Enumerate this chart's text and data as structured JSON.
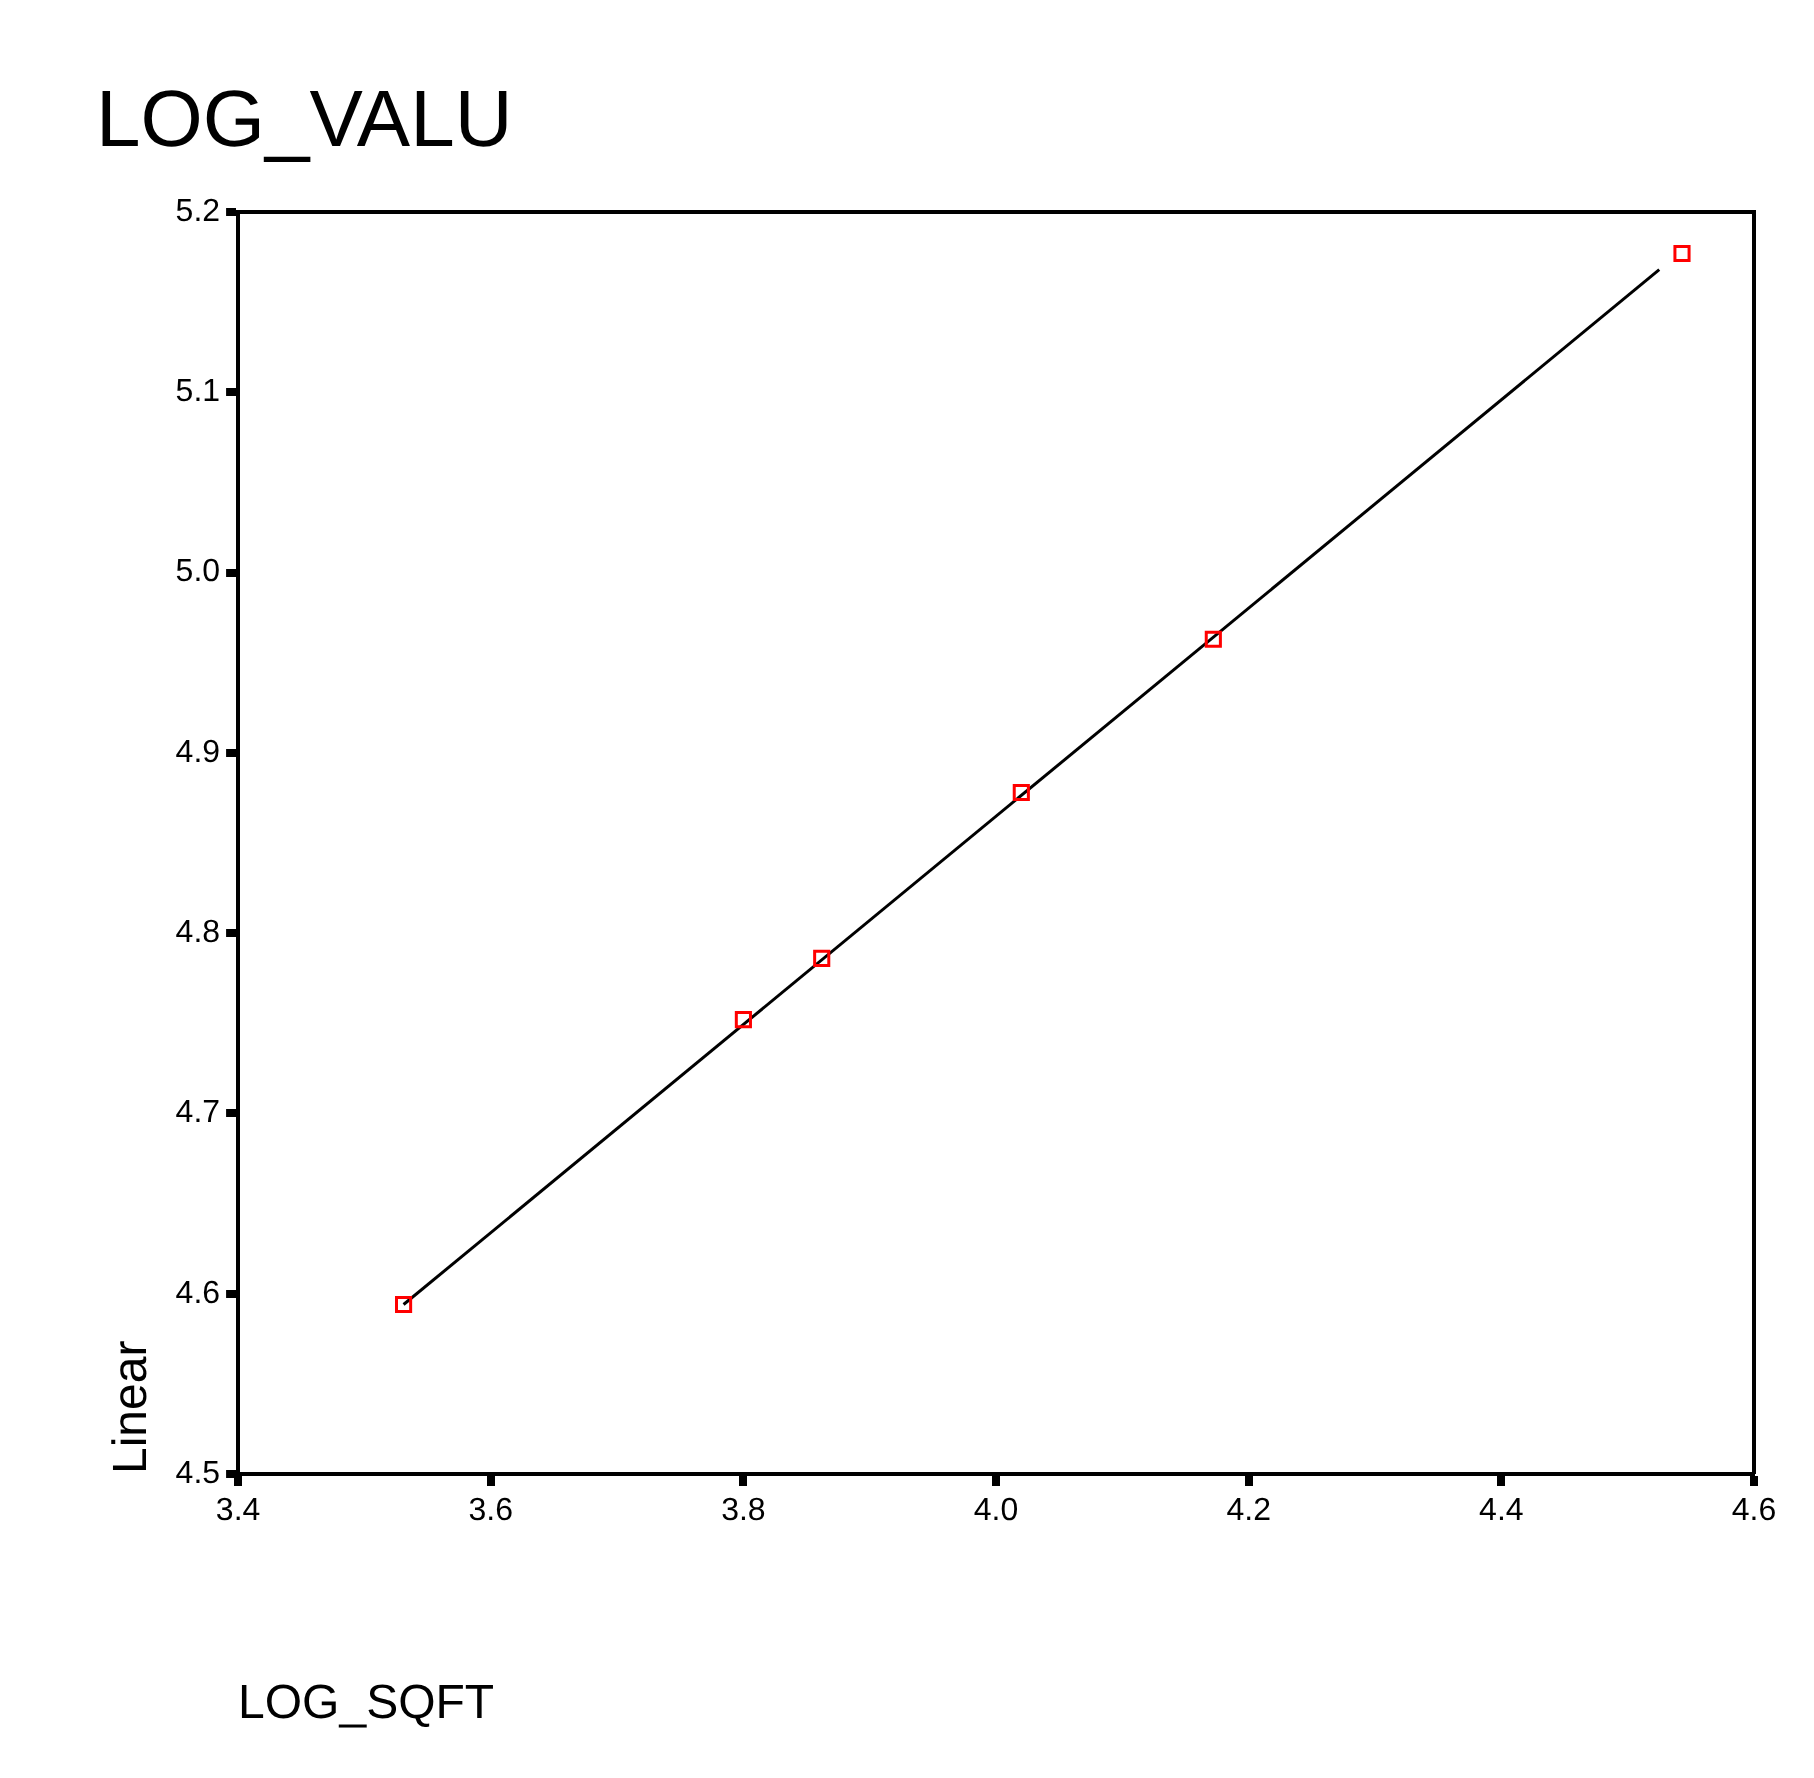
{
  "chart_data": {
    "type": "scatter",
    "title": "LOG_VALU",
    "xlabel": "LOG_SQFT",
    "ylabel": "Linear",
    "xlim": [
      3.4,
      4.6
    ],
    "xticks": [
      3.4,
      3.6,
      3.8,
      {
        "value": 4,
        "label": "4.0"
      },
      4.2,
      4.4,
      4.6
    ],
    "ylim": [
      4.5,
      5.2
    ],
    "yticks": [
      4.5,
      4.6,
      4.7,
      4.8,
      4.9,
      {
        "value": 5,
        "label": "5.0"
      },
      5.1,
      5.2
    ],
    "marker": "square",
    "legend": false,
    "series": [
      {
        "type": "scatter",
        "color": "#ff0000",
        "x": [
          3.531,
          3.8,
          3.862,
          4.02,
          4.172,
          4.543
        ],
        "values": [
          4.594,
          4.752,
          4.786,
          4.878,
          4.963,
          5.177
        ]
      },
      {
        "type": "line",
        "color": "#000000",
        "marker": "none",
        "line_style": "solid",
        "x": [
          3.531,
          4.525
        ],
        "values": [
          4.594,
          5.168
        ]
      }
    ]
  }
}
